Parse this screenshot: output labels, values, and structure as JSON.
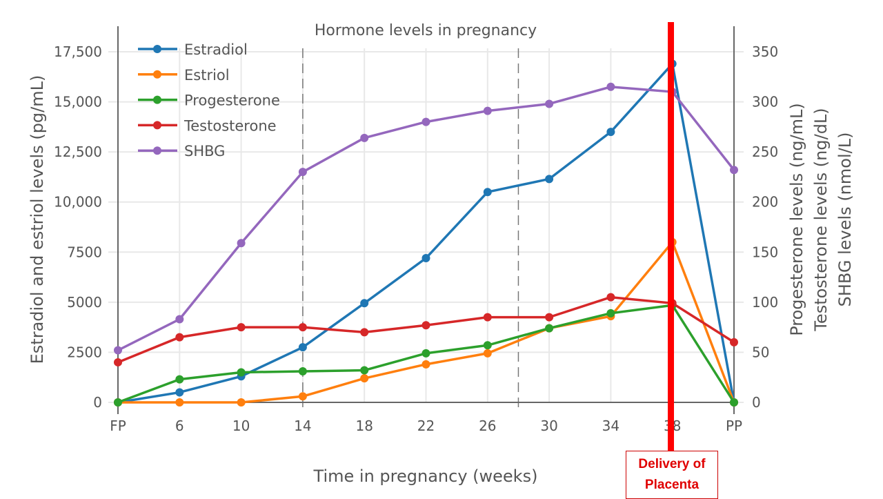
{
  "chart_data": {
    "type": "line",
    "title": "Hormone levels in pregnancy",
    "xlabel": "Time in pregnancy (weeks)",
    "ylabel_left": "Estradiol and estriol levels (pg/mL)",
    "ylabel_right": [
      "Progesterone levels (ng/mL)",
      "Testosterone levels (ng/dL)",
      "SHBG levels (nmol/L)"
    ],
    "categories": [
      "FP",
      "6",
      "10",
      "14",
      "18",
      "22",
      "26",
      "30",
      "34",
      "38",
      "PP"
    ],
    "ylim_left": [
      0,
      17500
    ],
    "ylim_right": [
      0,
      350
    ],
    "yticks_left": [
      "0",
      "2500",
      "5000",
      "7500",
      "10,000",
      "12,500",
      "15,000",
      "17,500"
    ],
    "yticks_right": [
      "0",
      "50",
      "100",
      "150",
      "200",
      "250",
      "300",
      "350"
    ],
    "legend_position": "top-left",
    "grid": true,
    "series": [
      {
        "name": "Estradiol",
        "axis": "left",
        "color": "#1f77b4",
        "values": [
          0,
          500,
          1300,
          2750,
          4950,
          7200,
          10500,
          11150,
          13500,
          16900,
          0
        ]
      },
      {
        "name": "Estriol",
        "axis": "left",
        "color": "#ff7f0e",
        "values": [
          0,
          0,
          0,
          300,
          1200,
          1900,
          2450,
          3700,
          4300,
          8000,
          0
        ]
      },
      {
        "name": "Progesterone",
        "axis": "right",
        "color": "#2ca02c",
        "values": [
          0,
          23,
          30,
          31,
          32,
          49,
          57,
          74,
          89,
          97,
          0
        ]
      },
      {
        "name": "Testosterone",
        "axis": "right",
        "color": "#d62728",
        "values": [
          40,
          65,
          75,
          75,
          70,
          77,
          85,
          85,
          105,
          99,
          60
        ]
      },
      {
        "name": "SHBG",
        "axis": "right",
        "color": "#9467bd",
        "values": [
          52,
          83,
          159,
          230,
          264,
          280,
          291,
          298,
          315,
          310,
          232
        ]
      }
    ],
    "dashed_vlines_weeks": [
      "14",
      "28"
    ],
    "annotation": {
      "text_line1": "Delivery of",
      "text_line2": "Placenta",
      "at": "38",
      "color": "#ff0000"
    }
  }
}
